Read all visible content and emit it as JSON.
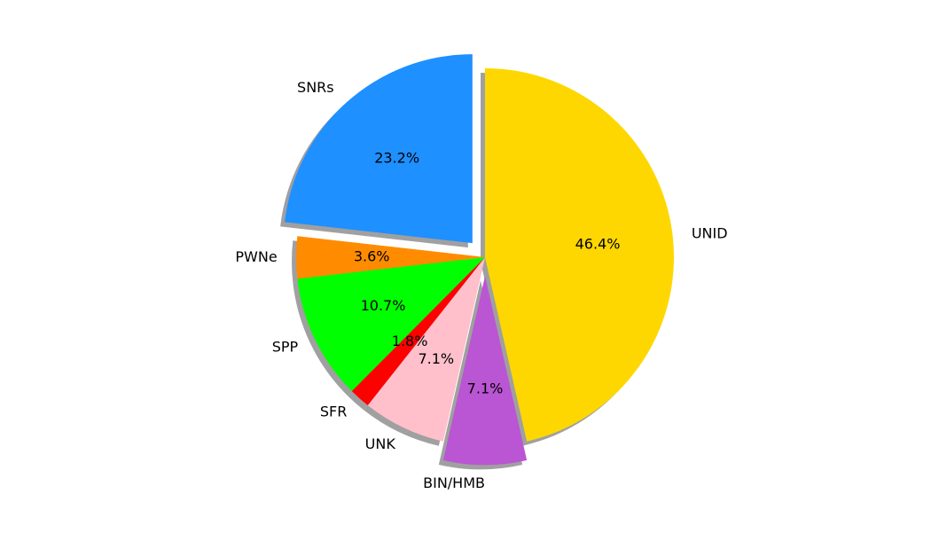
{
  "chart_data": {
    "type": "pie",
    "categories": [
      "UNID",
      "BIN/HMB",
      "UNK",
      "SFR",
      "SPP",
      "PWNe",
      "SNRs"
    ],
    "values": [
      46.4,
      7.1,
      7.1,
      1.8,
      10.7,
      3.6,
      23.2
    ],
    "value_labels": [
      "46.4%",
      "7.1%",
      "7.1%",
      "1.8%",
      "10.7%",
      "3.6%",
      "23.2%"
    ],
    "colors": [
      "#ffd700",
      "#ba55d3",
      "#ffc0cb",
      "#ff0000",
      "#00ff00",
      "#ff8c00",
      "#1e90ff"
    ],
    "explode": [
      0,
      0.1,
      0,
      0,
      0,
      0,
      0.1
    ],
    "startangle": 90,
    "counterclock": false,
    "shadow": true
  }
}
